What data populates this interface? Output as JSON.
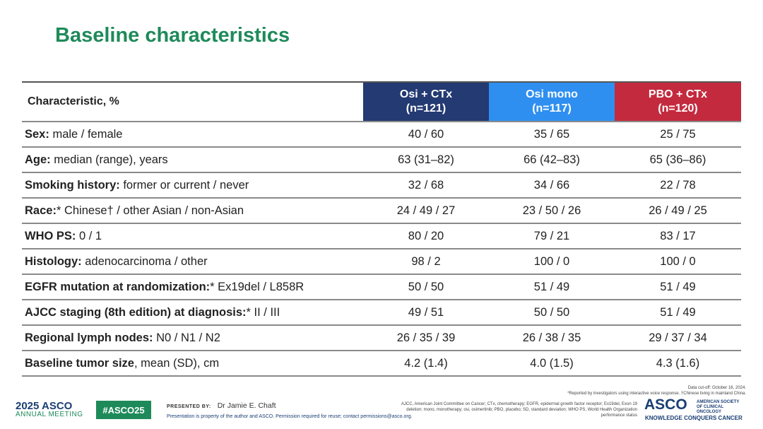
{
  "title": "Baseline characteristics",
  "table": {
    "header": {
      "characteristic": "Characteristic, %",
      "arms": [
        {
          "name": "Osi + CTx",
          "n": "(n=121)",
          "color": "#233a72"
        },
        {
          "name": "Osi mono",
          "n": "(n=117)",
          "color": "#2f8ff0"
        },
        {
          "name": "PBO + CTx",
          "n": "(n=120)",
          "color": "#c42a3e"
        }
      ]
    },
    "rows": [
      {
        "bold": "Sex:",
        "rest": " male / female",
        "values": [
          "40 / 60",
          "35 / 65",
          "25 / 75"
        ]
      },
      {
        "bold": "Age:",
        "rest": " median (range), years",
        "values": [
          "63 (31–82)",
          "66 (42–83)",
          "65 (36–86)"
        ]
      },
      {
        "bold": "Smoking history:",
        "rest": " former or current / never",
        "values": [
          "32 / 68",
          "34 / 66",
          "22 / 78"
        ]
      },
      {
        "bold": "Race:",
        "rest": "* Chinese† / other Asian / non-Asian",
        "values": [
          "24 / 49 / 27",
          "23 / 50 / 26",
          "26 / 49 / 25"
        ]
      },
      {
        "bold": "WHO PS:",
        "rest": " 0 / 1",
        "values": [
          "80 / 20",
          "79 / 21",
          "83 / 17"
        ]
      },
      {
        "bold": "Histology:",
        "rest": " adenocarcinoma / other",
        "values": [
          "98 / 2",
          "100 / 0",
          "100 / 0"
        ]
      },
      {
        "bold": "EGFR mutation at randomization:",
        "rest": "* Ex19del / L858R",
        "values": [
          "50 / 50",
          "51 / 49",
          "51 / 49"
        ]
      },
      {
        "bold": "AJCC staging (8th edition) at diagnosis:",
        "rest": "* II / III",
        "values": [
          "49 / 51",
          "50 / 50",
          "51 / 49"
        ]
      },
      {
        "bold": "Regional lymph nodes:",
        "rest": " N0 / N1 / N2",
        "values": [
          "26 / 35 / 39",
          "26 / 38 / 35",
          "29 / 37 / 34"
        ]
      },
      {
        "bold": "Baseline tumor size",
        "rest": ", mean (SD), cm",
        "values": [
          "4.2 (1.4)",
          "4.0 (1.5)",
          "4.3 (1.6)"
        ]
      }
    ]
  },
  "footer": {
    "meeting_year": "2025",
    "meeting_org": "ASCO",
    "meeting_sub": "ANNUAL MEETING",
    "hashtag": "#ASCO25",
    "presented_by_label": "PRESENTED BY:",
    "presenter": "Dr Jamie E. Chaft",
    "disclaimer": "Presentation is property of the author and ASCO. Permission required for reuse; contact permissions@asco.org.",
    "data_cutoff": "Data cut-off: October 16, 2024.",
    "footnote": "*Reported by investigators using interactive voice response. †Chinese living in mainland China.",
    "abbreviations": "AJCC, American Joint Committee on Cancer; CTx, chemotherapy; EGFR, epidermal growth factor receptor; Ex19del, Exon 19 deletion; mono, monotherapy; osi, osimertinib; PBO, placebo; SD, standard deviation; WHO PS, World Health Organization performance status",
    "asco_logo": "ASCO",
    "asco_side": "AMERICAN SOCIETY OF CLINICAL ONCOLOGY",
    "asco_tagline": "KNOWLEDGE CONQUERS CANCER"
  }
}
